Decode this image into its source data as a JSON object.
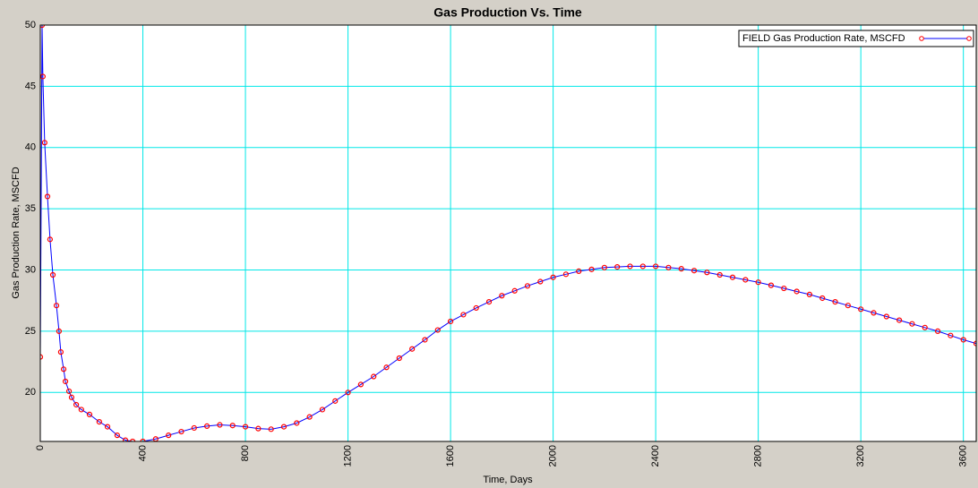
{
  "chart_data": {
    "type": "line",
    "title": "Gas Production Vs. Time",
    "x_label": "Time, Days",
    "y_label": "Gas Production Rate, MSCFD",
    "xlim": [
      0,
      3650
    ],
    "ylim": [
      16,
      50
    ],
    "xticks": [
      0,
      400,
      800,
      1200,
      1600,
      2000,
      2400,
      2800,
      3200,
      3600
    ],
    "yticks": [
      20,
      25,
      30,
      35,
      40,
      45,
      50
    ],
    "grid": true,
    "grid_color": "#00e8e8",
    "legend": "upper right",
    "x": [
      0,
      7,
      10,
      17,
      28,
      38,
      49,
      63,
      73,
      80,
      91,
      98,
      112,
      122,
      140,
      160,
      192,
      230,
      262,
      300,
      332,
      360,
      400,
      450,
      500,
      550,
      600,
      650,
      700,
      750,
      800,
      850,
      900,
      950,
      1000,
      1050,
      1100,
      1150,
      1200,
      1250,
      1300,
      1350,
      1400,
      1450,
      1500,
      1550,
      1600,
      1650,
      1700,
      1750,
      1800,
      1850,
      1900,
      1950,
      2000,
      2050,
      2100,
      2150,
      2200,
      2250,
      2300,
      2350,
      2400,
      2450,
      2500,
      2550,
      2600,
      2650,
      2700,
      2750,
      2800,
      2850,
      2900,
      2950,
      3000,
      3050,
      3100,
      3150,
      3200,
      3250,
      3300,
      3350,
      3400,
      3450,
      3500,
      3550,
      3600,
      3650
    ],
    "series": [
      {
        "name": "FIELD Gas Production Rate, MSCFD",
        "color": "#0000ff",
        "marker_color": "#ff0000",
        "values": [
          22.9,
          50,
          45.8,
          40.4,
          36.0,
          32.5,
          29.6,
          27.1,
          25.0,
          23.3,
          21.9,
          20.9,
          20.1,
          19.6,
          19.0,
          18.6,
          18.2,
          17.6,
          17.2,
          16.5,
          16.1,
          16.0,
          16.0,
          16.2,
          16.5,
          16.8,
          17.1,
          17.25,
          17.35,
          17.3,
          17.2,
          17.05,
          17.0,
          17.2,
          17.5,
          18.0,
          18.6,
          19.3,
          20.0,
          20.65,
          21.3,
          22.05,
          22.8,
          23.55,
          24.3,
          25.1,
          25.8,
          26.35,
          26.9,
          27.4,
          27.9,
          28.3,
          28.7,
          29.05,
          29.4,
          29.65,
          29.9,
          30.05,
          30.2,
          30.25,
          30.3,
          30.3,
          30.3,
          30.2,
          30.1,
          29.95,
          29.8,
          29.6,
          29.4,
          29.2,
          29.0,
          28.75,
          28.5,
          28.25,
          28.0,
          27.7,
          27.4,
          27.1,
          26.8,
          26.5,
          26.2,
          25.9,
          25.6,
          25.3,
          25.0,
          24.65,
          24.3,
          24.0
        ]
      }
    ]
  }
}
